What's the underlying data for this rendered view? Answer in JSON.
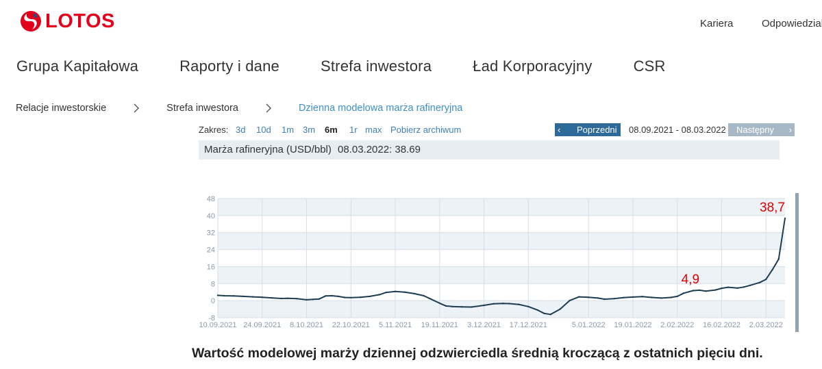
{
  "header": {
    "logo_text": "LOTOS",
    "util_links": [
      "Kariera",
      "Odpowiedzialn"
    ]
  },
  "main_nav": [
    "Grupa Kapitałowa",
    "Raporty i dane",
    "Strefa inwestora",
    "Ład Korporacyjny",
    "CSR"
  ],
  "breadcrumb": {
    "items": [
      "Relacje inwestorskie",
      "Strefa inwestora",
      "Dzienna modelowa marża rafineryjna"
    ],
    "active_color": "#3d8fc6"
  },
  "toolbar": {
    "range_label": "Zakres:",
    "range_options": [
      "3d",
      "10d",
      "1m",
      "3m",
      "6m",
      "1r",
      "max",
      "Pobierz archiwum"
    ],
    "selected_option": "6m",
    "prev_label": "Poprzedni",
    "date_range": "08.09.2021 - 08.03.2022",
    "next_label": "Następny",
    "prev_color": "#2d6a99",
    "next_color": "#a7b8c6"
  },
  "info": {
    "label": "Marża rafineryjna (USD/bbl)",
    "value": "08.03.2022: 38.69"
  },
  "chart_data": {
    "type": "line",
    "title": "",
    "xlabel": "",
    "ylabel": "",
    "ylim": [
      -8,
      48
    ],
    "y_ticks": [
      "-8",
      "0",
      "8",
      "16",
      "24",
      "32",
      "40",
      "48"
    ],
    "x_tick_labels": [
      "10.09.2021",
      "24.09.2021",
      "8.10.2021",
      "22.10.2021",
      "5.11.2021",
      "19.11.2021",
      "3.12.2021",
      "17.12.2021",
      "5.01.2022",
      "19.01.2022",
      "2.02.2022",
      "16.02.2022",
      "2.03.2022"
    ],
    "grid": true,
    "line_color": "#1c3d52",
    "series": [
      {
        "x": [
          "10.09.2021",
          "12.09.2021",
          "15.09.2021",
          "18.09.2021",
          "21.09.2021",
          "24.09.2021",
          "27.09.2021",
          "30.09.2021",
          "2.10.2021",
          "5.10.2021",
          "8.10.2021",
          "10.10.2021",
          "12.10.2021",
          "14.10.2021",
          "16.10.2021",
          "18.10.2021",
          "20.10.2021",
          "22.10.2021",
          "25.10.2021",
          "28.10.2021",
          "31.10.2021",
          "2.11.2021",
          "5.11.2021",
          "8.11.2021",
          "11.11.2021",
          "14.11.2021",
          "16.11.2021",
          "19.11.2021",
          "21.11.2021",
          "23.11.2021",
          "26.11.2021",
          "29.11.2021",
          "3.12.2021",
          "6.12.2021",
          "9.12.2021",
          "11.12.2021",
          "14.12.2021",
          "17.12.2021",
          "20.12.2021",
          "22.12.2021",
          "24.12.2021",
          "27.12.2021",
          "30.12.2021",
          "2.01.2022",
          "5.01.2022",
          "8.01.2022",
          "10.01.2022",
          "13.01.2022",
          "16.01.2022",
          "19.01.2022",
          "22.01.2022",
          "25.01.2022",
          "28.01.2022",
          "31.01.2022",
          "2.02.2022",
          "4.02.2022",
          "7.02.2022",
          "9.02.2022",
          "11.02.2022",
          "14.02.2022",
          "16.02.2022",
          "18.02.2022",
          "21.02.2022",
          "23.02.2022",
          "25.02.2022",
          "28.02.2022",
          "2.03.2022",
          "4.03.2022",
          "6.03.2022",
          "8.03.2022"
        ],
        "values": [
          2.5,
          2.3,
          2.2,
          2.0,
          1.8,
          1.6,
          1.3,
          1.0,
          1.1,
          0.9,
          0.4,
          0.6,
          0.8,
          2.2,
          2.3,
          2.0,
          1.5,
          1.4,
          1.6,
          2.0,
          2.8,
          3.8,
          4.3,
          4.0,
          3.3,
          2.3,
          0.9,
          -1.2,
          -2.5,
          -2.8,
          -2.9,
          -3.0,
          -2.2,
          -1.5,
          -1.3,
          -1.4,
          -1.8,
          -2.8,
          -4.5,
          -6.0,
          -6.5,
          -4.0,
          0.0,
          1.8,
          1.6,
          1.2,
          0.7,
          0.9,
          1.4,
          1.7,
          1.9,
          1.5,
          1.2,
          1.5,
          2.0,
          3.5,
          4.7,
          4.9,
          4.5,
          5.0,
          5.8,
          6.3,
          5.9,
          6.4,
          7.2,
          8.5,
          10.0,
          14.5,
          19.5,
          38.7
        ]
      }
    ],
    "annotations": [
      {
        "x": "9.02.2022",
        "y": 4.9,
        "text": "4,9"
      },
      {
        "x": "8.03.2022",
        "y": 38.7,
        "text": "38,7"
      }
    ],
    "annotation_color": "#e00000"
  },
  "caption": "Wartość modelowej marży dziennej odzwierciedla średnią kroczącą z ostatnich pięciu dni."
}
